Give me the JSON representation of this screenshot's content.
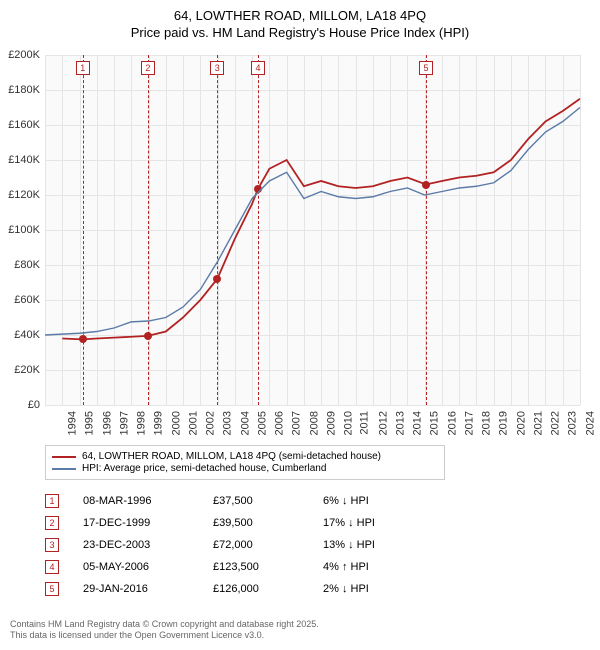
{
  "title": "64, LOWTHER ROAD, MILLOM, LA18 4PQ",
  "subtitle": "Price paid vs. HM Land Registry's House Price Index (HPI)",
  "chart": {
    "type": "line",
    "background_color": "#fafafa",
    "grid_color": "#e5e5e5",
    "ylim": [
      0,
      200000
    ],
    "ytick_step": 20000,
    "y_labels": [
      "£0",
      "£20K",
      "£40K",
      "£60K",
      "£80K",
      "£100K",
      "£120K",
      "£140K",
      "£160K",
      "£180K",
      "£200K"
    ],
    "xlim": [
      1994,
      2025
    ],
    "x_labels": [
      "1994",
      "1995",
      "1996",
      "1997",
      "1998",
      "1999",
      "2000",
      "2001",
      "2002",
      "2003",
      "2004",
      "2005",
      "2006",
      "2007",
      "2008",
      "2009",
      "2010",
      "2011",
      "2012",
      "2013",
      "2014",
      "2015",
      "2016",
      "2017",
      "2018",
      "2019",
      "2020",
      "2021",
      "2022",
      "2023",
      "2024",
      "2025"
    ],
    "series": [
      {
        "name": "property",
        "color": "#b22222",
        "line_width": 1.8,
        "data": [
          [
            1995.0,
            38000
          ],
          [
            1996.19,
            37500
          ],
          [
            1997,
            38000
          ],
          [
            1998,
            38500
          ],
          [
            1999,
            39000
          ],
          [
            1999.96,
            39500
          ],
          [
            2001,
            42000
          ],
          [
            2002,
            50000
          ],
          [
            2003,
            60000
          ],
          [
            2003.98,
            72000
          ],
          [
            2005,
            95000
          ],
          [
            2006,
            115000
          ],
          [
            2006.34,
            123500
          ],
          [
            2007,
            135000
          ],
          [
            2008,
            140000
          ],
          [
            2009,
            125000
          ],
          [
            2010,
            128000
          ],
          [
            2011,
            125000
          ],
          [
            2012,
            124000
          ],
          [
            2013,
            125000
          ],
          [
            2014,
            128000
          ],
          [
            2015,
            130000
          ],
          [
            2016.08,
            126000
          ],
          [
            2017,
            128000
          ],
          [
            2018,
            130000
          ],
          [
            2019,
            131000
          ],
          [
            2020,
            133000
          ],
          [
            2021,
            140000
          ],
          [
            2022,
            152000
          ],
          [
            2023,
            162000
          ],
          [
            2024,
            168000
          ],
          [
            2025,
            175000
          ]
        ]
      },
      {
        "name": "hpi",
        "color": "#5b7ba8",
        "line_width": 1.4,
        "data": [
          [
            1994,
            40000
          ],
          [
            1995,
            40500
          ],
          [
            1996,
            41000
          ],
          [
            1997,
            42000
          ],
          [
            1998,
            44000
          ],
          [
            1999,
            47500
          ],
          [
            2000,
            48000
          ],
          [
            2001,
            50000
          ],
          [
            2002,
            56000
          ],
          [
            2003,
            66000
          ],
          [
            2004,
            82000
          ],
          [
            2005,
            100000
          ],
          [
            2006,
            118000
          ],
          [
            2007,
            128000
          ],
          [
            2008,
            133000
          ],
          [
            2009,
            118000
          ],
          [
            2010,
            122000
          ],
          [
            2011,
            119000
          ],
          [
            2012,
            118000
          ],
          [
            2013,
            119000
          ],
          [
            2014,
            122000
          ],
          [
            2015,
            124000
          ],
          [
            2016,
            120000
          ],
          [
            2017,
            122000
          ],
          [
            2018,
            124000
          ],
          [
            2019,
            125000
          ],
          [
            2020,
            127000
          ],
          [
            2021,
            134000
          ],
          [
            2022,
            146000
          ],
          [
            2023,
            156000
          ],
          [
            2024,
            162000
          ],
          [
            2025,
            170000
          ]
        ]
      }
    ],
    "markers": [
      {
        "n": "1",
        "year": 1996.19,
        "price": 37500
      },
      {
        "n": "2",
        "year": 1999.96,
        "price": 39500
      },
      {
        "n": "3",
        "year": 2003.98,
        "price": 72000
      },
      {
        "n": "4",
        "year": 2006.34,
        "price": 123500
      },
      {
        "n": "5",
        "year": 2016.08,
        "price": 126000
      }
    ]
  },
  "legend": [
    {
      "color": "#b22222",
      "label": "64, LOWTHER ROAD, MILLOM, LA18 4PQ (semi-detached house)"
    },
    {
      "color": "#5b7ba8",
      "label": "HPI: Average price, semi-detached house, Cumberland"
    }
  ],
  "sales": [
    {
      "n": "1",
      "date": "08-MAR-1996",
      "price": "£37,500",
      "diff": "6% ↓ HPI"
    },
    {
      "n": "2",
      "date": "17-DEC-1999",
      "price": "£39,500",
      "diff": "17% ↓ HPI"
    },
    {
      "n": "3",
      "date": "23-DEC-2003",
      "price": "£72,000",
      "diff": "13% ↓ HPI"
    },
    {
      "n": "4",
      "date": "05-MAY-2006",
      "price": "£123,500",
      "diff": "4% ↑ HPI"
    },
    {
      "n": "5",
      "date": "29-JAN-2016",
      "price": "£126,000",
      "diff": "2% ↓ HPI"
    }
  ],
  "footer1": "Contains HM Land Registry data © Crown copyright and database right 2025.",
  "footer2": "This data is licensed under the Open Government Licence v3.0."
}
